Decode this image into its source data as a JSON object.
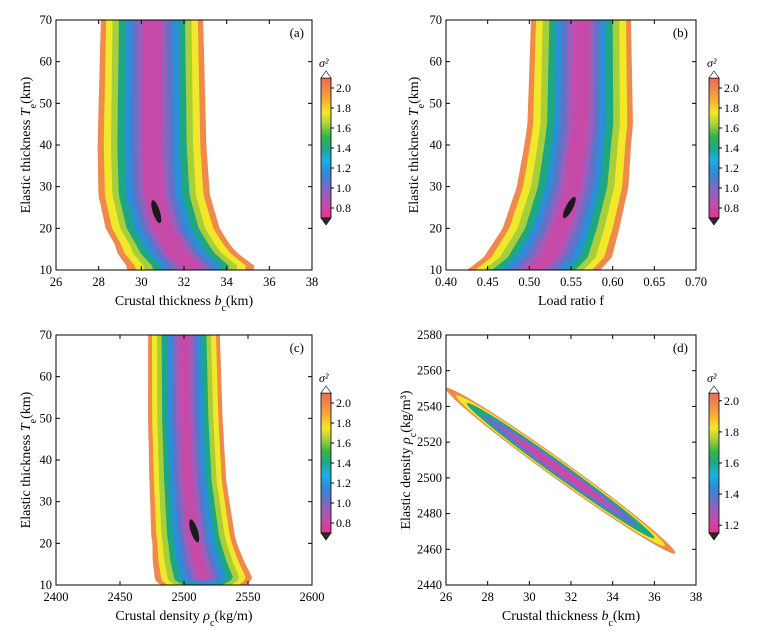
{
  "figure": {
    "panel_count": 4,
    "colormap_name": "sigma-squared contour colormap"
  },
  "colormap": [
    "#2a2a2a",
    "#e5358f",
    "#c64aa8",
    "#9a5fbd",
    "#5f74c9",
    "#2a8ed8",
    "#1ab0e2",
    "#1ea783",
    "#33b34a",
    "#a6cf3a",
    "#f2e82a",
    "#f9b233",
    "#f08a4b",
    "#ed6b55"
  ],
  "chart_data": [
    {
      "type": "heatmap",
      "label": "(a)",
      "title": "",
      "xlabel": "Crustal thickness",
      "xlabel_symbol": "b",
      "xlabel_sub": "c",
      "xlabel_unit": "(km)",
      "ylabel": "Elastic thickness",
      "ylabel_symbol": "T",
      "ylabel_sub": "e",
      "ylabel_unit": "(km)",
      "xlim": [
        26,
        38
      ],
      "ylim": [
        10,
        70
      ],
      "xticks": [
        26,
        28,
        30,
        32,
        34,
        36,
        38
      ],
      "xtick_labels": [
        "26",
        "28",
        "30",
        "32",
        "34",
        "36",
        "38"
      ],
      "yticks": [
        10,
        20,
        30,
        40,
        50,
        60,
        70
      ],
      "ytick_labels": [
        "10",
        "20",
        "30",
        "40",
        "50",
        "60",
        "70"
      ],
      "colorbar": {
        "label": "σ²",
        "min": 0.7,
        "max": 2.1,
        "ticks": [
          0.8,
          1.0,
          1.2,
          1.4,
          1.6,
          1.8,
          2.0
        ],
        "tick_labels": [
          "0.8",
          "1.0",
          "1.2",
          "1.4",
          "1.6",
          "1.8",
          "2.0"
        ]
      },
      "minimum": {
        "x": 30.7,
        "y": 24
      },
      "valley": [
        {
          "y": 11,
          "x": 32.3
        },
        {
          "y": 14,
          "x": 31.7
        },
        {
          "y": 20,
          "x": 31.0
        },
        {
          "y": 28,
          "x": 30.6
        },
        {
          "y": 40,
          "x": 30.5
        },
        {
          "y": 55,
          "x": 30.5
        },
        {
          "y": 70,
          "x": 30.5
        }
      ],
      "color_levels": [
        {
          "level": 2.0,
          "halfwidth": [
            {
              "y": 11,
              "w": 3.0
            },
            {
              "y": 16,
              "w": 2.7
            },
            {
              "y": 30,
              "w": 2.6
            },
            {
              "y": 70,
              "w": 2.4
            }
          ]
        },
        {
          "level": 1.8,
          "halfwidth": [
            {
              "y": 11,
              "w": 2.6
            },
            {
              "y": 16,
              "w": 2.4
            },
            {
              "y": 30,
              "w": 2.3
            },
            {
              "y": 70,
              "w": 2.15
            }
          ]
        },
        {
          "level": 1.6,
          "halfwidth": [
            {
              "y": 11,
              "w": 2.2
            },
            {
              "y": 16,
              "w": 2.0
            },
            {
              "y": 30,
              "w": 1.95
            },
            {
              "y": 70,
              "w": 1.85
            }
          ]
        },
        {
          "level": 1.4,
          "halfwidth": [
            {
              "y": 11,
              "w": 1.8
            },
            {
              "y": 16,
              "w": 1.7
            },
            {
              "y": 30,
              "w": 1.65
            },
            {
              "y": 70,
              "w": 1.55
            }
          ]
        },
        {
          "level": 1.2,
          "halfwidth": [
            {
              "y": 11,
              "w": 1.4
            },
            {
              "y": 16,
              "w": 1.35
            },
            {
              "y": 30,
              "w": 1.3
            },
            {
              "y": 70,
              "w": 1.25
            }
          ]
        },
        {
          "level": 1.0,
          "halfwidth": [
            {
              "y": 11,
              "w": 1.1
            },
            {
              "y": 16,
              "w": 1.0
            },
            {
              "y": 30,
              "w": 1.0
            },
            {
              "y": 70,
              "w": 0.95
            }
          ]
        },
        {
          "level": 0.9,
          "halfwidth": [
            {
              "y": 11,
              "w": 0.8
            },
            {
              "y": 16,
              "w": 0.75
            },
            {
              "y": 30,
              "w": 0.72
            },
            {
              "y": 70,
              "w": 0.68
            }
          ]
        },
        {
          "level": 0.8,
          "halfwidth": [
            {
              "y": 11,
              "w": 0.5
            },
            {
              "y": 16,
              "w": 0.5
            },
            {
              "y": 30,
              "w": 0.46
            },
            {
              "y": 70,
              "w": 0.42
            }
          ]
        }
      ]
    },
    {
      "type": "heatmap",
      "label": "(b)",
      "title": "",
      "xlabel": "Load ratio f",
      "xlabel_symbol": "",
      "xlabel_sub": "",
      "xlabel_unit": "",
      "ylabel": "Elastic thickness",
      "ylabel_symbol": "T",
      "ylabel_sub": "e",
      "ylabel_unit": "(km)",
      "xlim": [
        0.4,
        0.7
      ],
      "ylim": [
        10,
        70
      ],
      "xticks": [
        0.4,
        0.45,
        0.5,
        0.55,
        0.6,
        0.65,
        0.7
      ],
      "xtick_labels": [
        "0.40",
        "0.45",
        "0.50",
        "0.55",
        "0.60",
        "0.65",
        "0.70"
      ],
      "yticks": [
        10,
        20,
        30,
        40,
        50,
        60,
        70
      ],
      "ytick_labels": [
        "10",
        "20",
        "30",
        "40",
        "50",
        "60",
        "70"
      ],
      "colorbar": {
        "label": "σ²",
        "min": 0.7,
        "max": 2.1,
        "ticks": [
          0.8,
          1.0,
          1.2,
          1.4,
          1.6,
          1.8,
          2.0
        ],
        "tick_labels": [
          "0.8",
          "1.0",
          "1.2",
          "1.4",
          "1.6",
          "1.8",
          "2.0"
        ]
      },
      "minimum": {
        "x": 0.548,
        "y": 25
      },
      "valley": [
        {
          "y": 10,
          "x": 0.505
        },
        {
          "y": 13,
          "x": 0.522
        },
        {
          "y": 20,
          "x": 0.538
        },
        {
          "y": 30,
          "x": 0.552
        },
        {
          "y": 45,
          "x": 0.561
        },
        {
          "y": 70,
          "x": 0.562
        }
      ],
      "color_levels": [
        {
          "level": 2.0,
          "halfwidth": [
            {
              "y": 10,
              "w": 0.08
            },
            {
              "y": 20,
              "w": 0.07
            },
            {
              "y": 40,
              "w": 0.064
            },
            {
              "y": 70,
              "w": 0.06
            }
          ]
        },
        {
          "level": 1.8,
          "halfwidth": [
            {
              "y": 10,
              "w": 0.07
            },
            {
              "y": 20,
              "w": 0.062
            },
            {
              "y": 40,
              "w": 0.057
            },
            {
              "y": 70,
              "w": 0.054
            }
          ]
        },
        {
          "level": 1.6,
          "halfwidth": [
            {
              "y": 10,
              "w": 0.06
            },
            {
              "y": 20,
              "w": 0.052
            },
            {
              "y": 40,
              "w": 0.048
            },
            {
              "y": 70,
              "w": 0.046
            }
          ]
        },
        {
          "level": 1.4,
          "halfwidth": [
            {
              "y": 10,
              "w": 0.05
            },
            {
              "y": 20,
              "w": 0.043
            },
            {
              "y": 40,
              "w": 0.04
            },
            {
              "y": 70,
              "w": 0.038
            }
          ]
        },
        {
          "level": 1.2,
          "halfwidth": [
            {
              "y": 10,
              "w": 0.04
            },
            {
              "y": 20,
              "w": 0.034
            },
            {
              "y": 40,
              "w": 0.031
            },
            {
              "y": 70,
              "w": 0.03
            }
          ]
        },
        {
          "level": 1.0,
          "halfwidth": [
            {
              "y": 10,
              "w": 0.03
            },
            {
              "y": 20,
              "w": 0.026
            },
            {
              "y": 40,
              "w": 0.024
            },
            {
              "y": 70,
              "w": 0.023
            }
          ]
        },
        {
          "level": 0.9,
          "halfwidth": [
            {
              "y": 10,
              "w": 0.02
            },
            {
              "y": 20,
              "w": 0.018
            },
            {
              "y": 40,
              "w": 0.017
            },
            {
              "y": 70,
              "w": 0.016
            }
          ]
        },
        {
          "level": 0.8,
          "halfwidth": [
            {
              "y": 10,
              "w": 0.012
            },
            {
              "y": 20,
              "w": 0.011
            },
            {
              "y": 40,
              "w": 0.01
            },
            {
              "y": 70,
              "w": 0.01
            }
          ]
        }
      ]
    },
    {
      "type": "heatmap",
      "label": "(c)",
      "title": "",
      "xlabel": "Crustal density",
      "xlabel_symbol": "ρ",
      "xlabel_sub": "c",
      "xlabel_unit": "(kg/m)",
      "ylabel": "Elastic thickness",
      "ylabel_symbol": "T",
      "ylabel_sub": "e",
      "ylabel_unit": "(km)",
      "xlim": [
        2400,
        2600
      ],
      "ylim": [
        10,
        70
      ],
      "xticks": [
        2400,
        2450,
        2500,
        2550,
        2600
      ],
      "xtick_labels": [
        "2400",
        "2450",
        "2500",
        "2550",
        "2600"
      ],
      "yticks": [
        10,
        20,
        30,
        40,
        50,
        60,
        70
      ],
      "ytick_labels": [
        "10",
        "20",
        "30",
        "40",
        "50",
        "60",
        "70"
      ],
      "colorbar": {
        "label": "σ²",
        "min": 0.7,
        "max": 2.1,
        "ticks": [
          0.8,
          1.0,
          1.2,
          1.4,
          1.6,
          1.8,
          2.0
        ],
        "tick_labels": [
          "0.8",
          "1.0",
          "1.2",
          "1.4",
          "1.6",
          "1.8",
          "2.0"
        ]
      },
      "minimum": {
        "x": 2508,
        "y": 23
      },
      "valley": [
        {
          "y": 12,
          "x": 2515
        },
        {
          "y": 16,
          "x": 2511
        },
        {
          "y": 22,
          "x": 2507
        },
        {
          "y": 35,
          "x": 2503
        },
        {
          "y": 50,
          "x": 2501
        },
        {
          "y": 70,
          "x": 2500
        }
      ],
      "color_levels": [
        {
          "level": 2.0,
          "halfwidth": [
            {
              "y": 12,
              "w": 38
            },
            {
              "y": 20,
              "w": 33
            },
            {
              "y": 35,
              "w": 30
            },
            {
              "y": 70,
              "w": 28
            }
          ]
        },
        {
          "level": 1.8,
          "halfwidth": [
            {
              "y": 12,
              "w": 33
            },
            {
              "y": 20,
              "w": 29
            },
            {
              "y": 35,
              "w": 26.5
            },
            {
              "y": 70,
              "w": 25
            }
          ]
        },
        {
          "level": 1.6,
          "halfwidth": [
            {
              "y": 12,
              "w": 28
            },
            {
              "y": 20,
              "w": 25
            },
            {
              "y": 35,
              "w": 22.5
            },
            {
              "y": 70,
              "w": 21
            }
          ]
        },
        {
          "level": 1.4,
          "halfwidth": [
            {
              "y": 12,
              "w": 23
            },
            {
              "y": 20,
              "w": 20.5
            },
            {
              "y": 35,
              "w": 18.5
            },
            {
              "y": 70,
              "w": 17.5
            }
          ]
        },
        {
          "level": 1.2,
          "halfwidth": [
            {
              "y": 12,
              "w": 18
            },
            {
              "y": 20,
              "w": 16
            },
            {
              "y": 35,
              "w": 14.5
            },
            {
              "y": 70,
              "w": 13.5
            }
          ]
        },
        {
          "level": 1.0,
          "halfwidth": [
            {
              "y": 12,
              "w": 13
            },
            {
              "y": 20,
              "w": 11.5
            },
            {
              "y": 35,
              "w": 10.5
            },
            {
              "y": 70,
              "w": 10
            }
          ]
        },
        {
          "level": 0.9,
          "halfwidth": [
            {
              "y": 12,
              "w": 9
            },
            {
              "y": 20,
              "w": 8
            },
            {
              "y": 35,
              "w": 7.5
            },
            {
              "y": 70,
              "w": 7
            }
          ]
        },
        {
          "level": 0.8,
          "halfwidth": [
            {
              "y": 12,
              "w": 5
            },
            {
              "y": 20,
              "w": 4.5
            },
            {
              "y": 35,
              "w": 4
            },
            {
              "y": 70,
              "w": 3.8
            }
          ]
        }
      ]
    },
    {
      "type": "heatmap",
      "label": "(d)",
      "title": "",
      "xlabel": "Crustal thickness",
      "xlabel_symbol": "b",
      "xlabel_sub": "c",
      "xlabel_unit": "(km)",
      "ylabel": "Elastic density",
      "ylabel_symbol": "ρ",
      "ylabel_sub": "c",
      "ylabel_unit": "(kg/m³)",
      "xlim": [
        26,
        38
      ],
      "ylim": [
        2440,
        2580
      ],
      "xticks": [
        26,
        28,
        30,
        32,
        34,
        36,
        38
      ],
      "xtick_labels": [
        "26",
        "28",
        "30",
        "32",
        "34",
        "36",
        "38"
      ],
      "yticks": [
        2440,
        2460,
        2480,
        2500,
        2520,
        2540,
        2560,
        2580
      ],
      "ytick_labels": [
        "2440",
        "2460",
        "2480",
        "2500",
        "2520",
        "2540",
        "2560",
        "2580"
      ],
      "colorbar": {
        "label": "σ²",
        "min": 1.15,
        "max": 2.05,
        "ticks": [
          1.2,
          1.4,
          1.6,
          1.8,
          2.0
        ],
        "tick_labels": [
          "1.2",
          "1.4",
          "1.6",
          "1.8",
          "2.0"
        ]
      },
      "ellipse": {
        "center_x": 31.5,
        "center_y": 2504,
        "slope_dy_per_dx": -8.4
      },
      "color_levels": [
        {
          "level": 2.0,
          "a": 5.5,
          "b": 12.5
        },
        {
          "level": 1.8,
          "a": 5.0,
          "b": 11.0
        },
        {
          "level": 1.6,
          "a": 4.5,
          "b": 9.5
        },
        {
          "level": 1.4,
          "a": 3.7,
          "b": 7.8
        },
        {
          "level": 1.3,
          "a": 2.9,
          "b": 6.0
        },
        {
          "level": 1.2,
          "a": 2.1,
          "b": 4.3
        }
      ]
    }
  ]
}
